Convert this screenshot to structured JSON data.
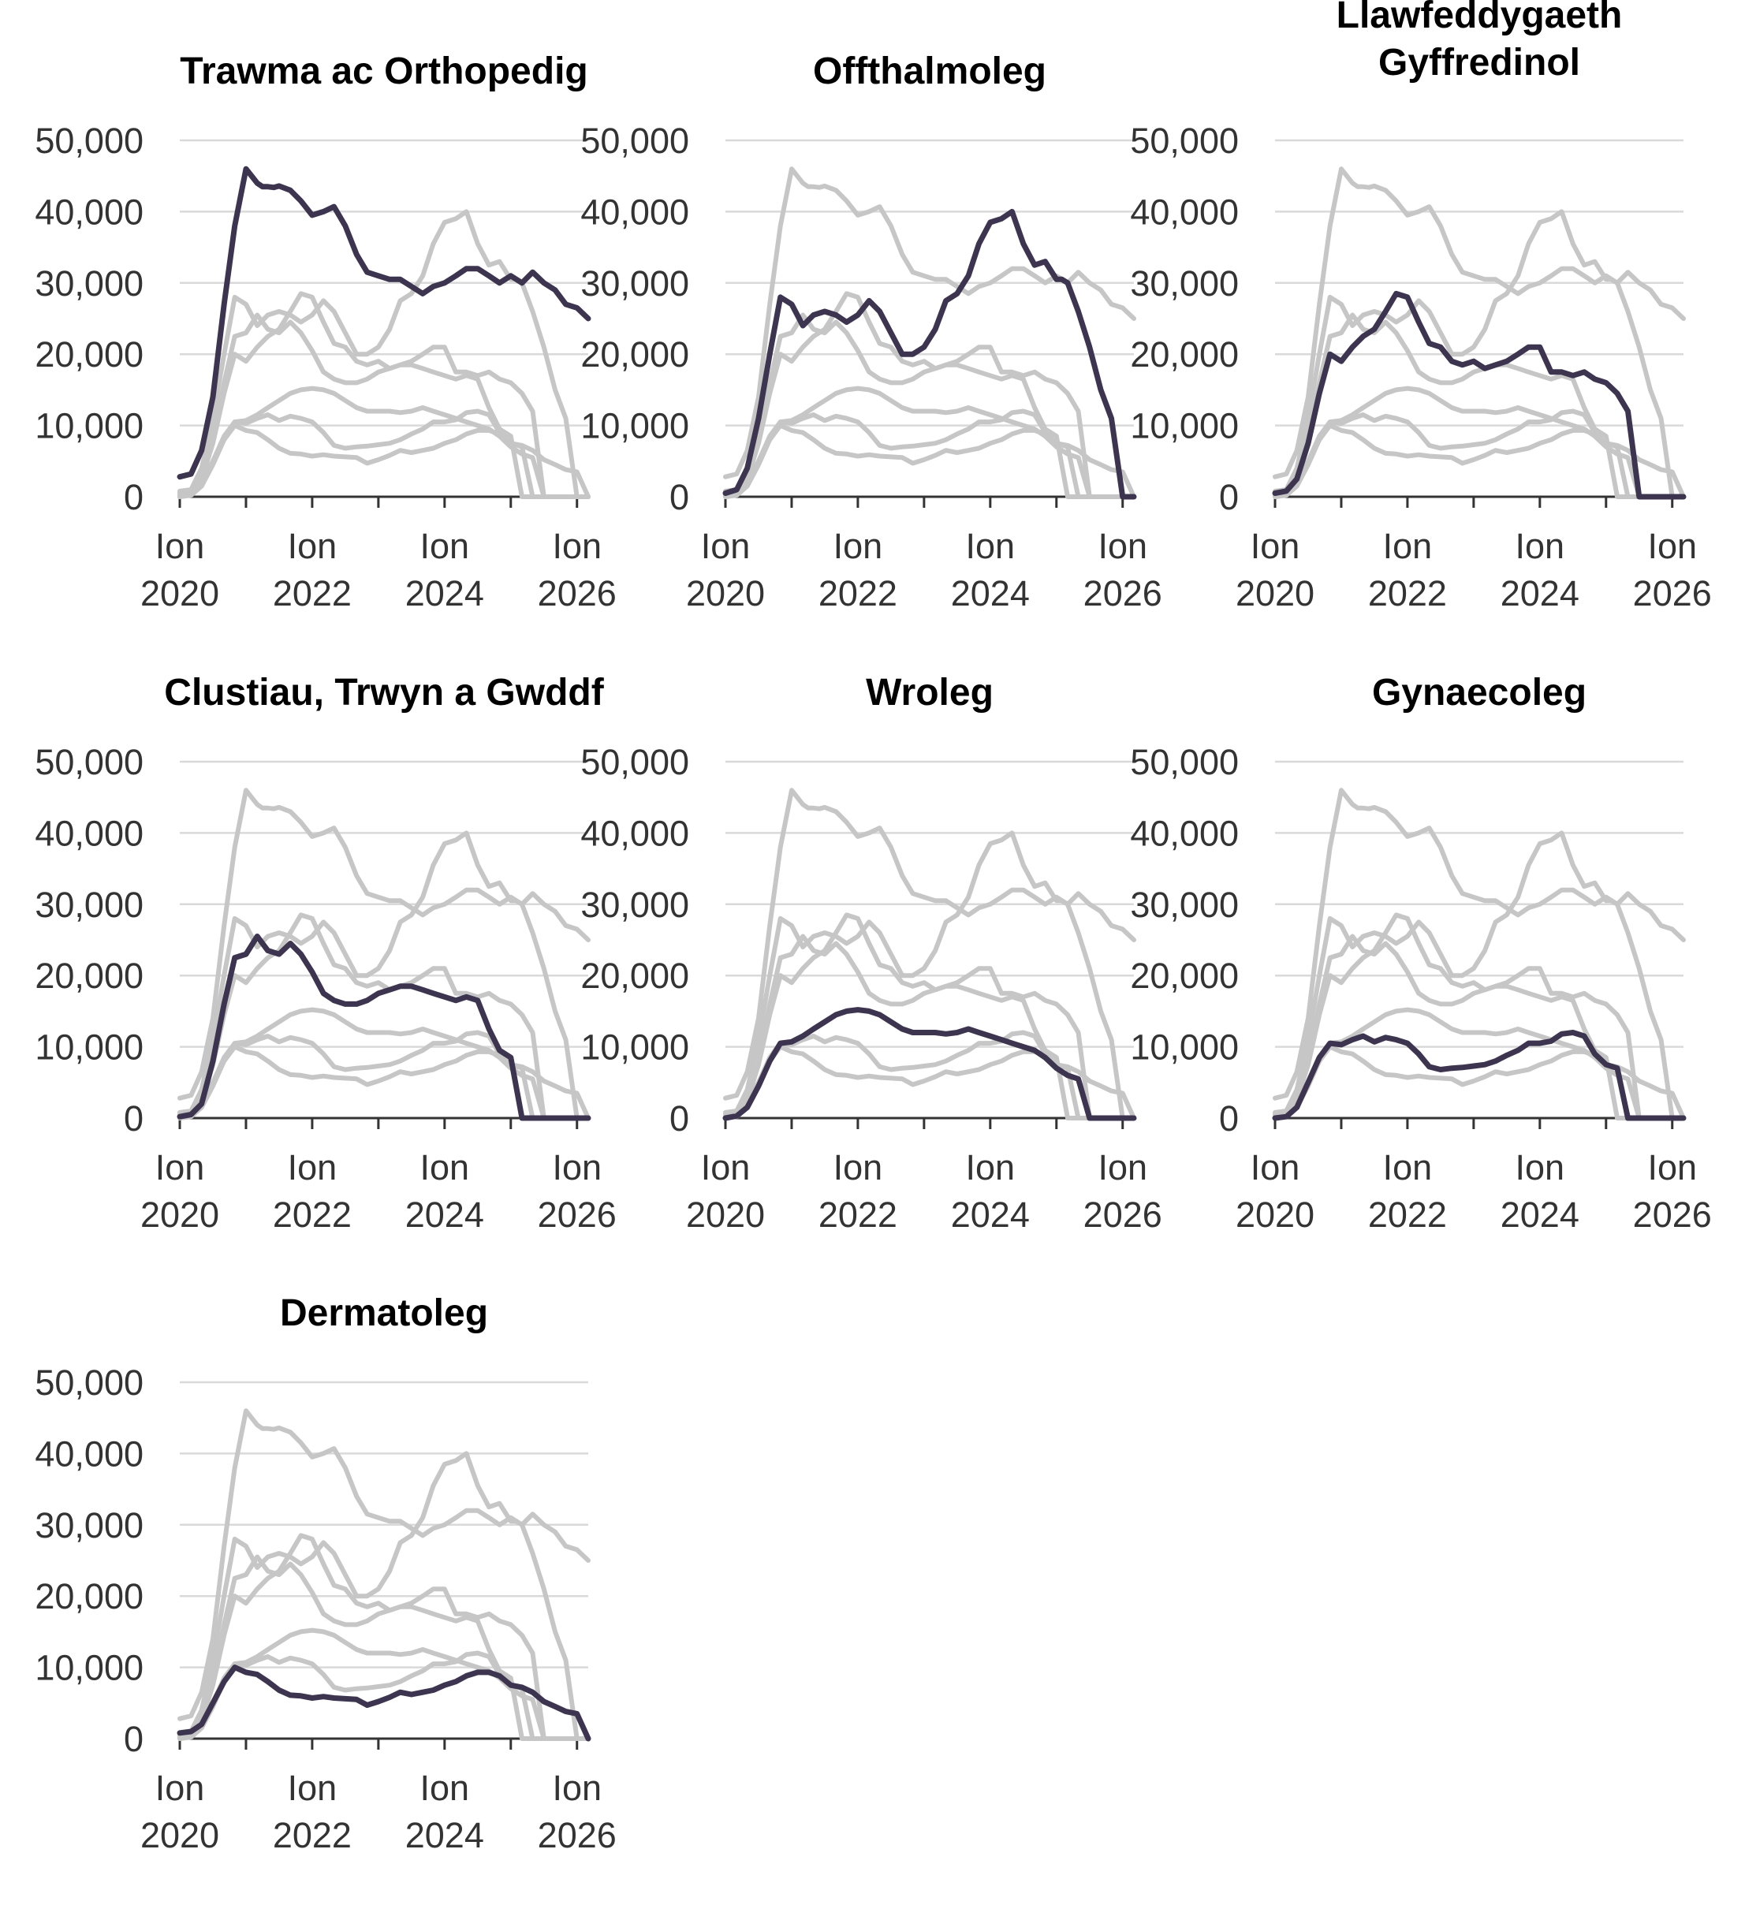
{
  "chart_data": {
    "type": "line",
    "layout": "small-multiples",
    "x_ticks": [
      {
        "x": 2020.0,
        "line1": "Ion",
        "line2": "2020"
      },
      {
        "x": 2022.0,
        "line1": "Ion",
        "line2": "2022"
      },
      {
        "x": 2024.0,
        "line1": "Ion",
        "line2": "2024"
      },
      {
        "x": 2026.0,
        "line1": "Ion",
        "line2": "2026"
      }
    ],
    "x_minor_ticks": [
      2021.0,
      2023.0,
      2025.0
    ],
    "xlim": [
      2020.0,
      2026.17
    ],
    "y_ticks": [
      {
        "value": 0,
        "label": "0"
      },
      {
        "value": 10000,
        "label": "10,000"
      },
      {
        "value": 20000,
        "label": "20,000"
      },
      {
        "value": 30000,
        "label": "30,000"
      },
      {
        "value": 40000,
        "label": "40,000"
      },
      {
        "value": 50000,
        "label": "50,000"
      }
    ],
    "ylim": [
      0,
      50000
    ],
    "grid": true,
    "colors": {
      "highlight": "#3d3550",
      "background": "#c6c6c6",
      "grid": "#d9d9d9"
    },
    "panels": [
      {
        "title_lines": [
          "Trawma ac Orthopedig"
        ],
        "highlight": 0
      },
      {
        "title_lines": [
          "Offthalmoleg"
        ],
        "highlight": 1
      },
      {
        "title_lines": [
          "Llawfeddygaeth",
          "Gyffredinol"
        ],
        "highlight": 2
      },
      {
        "title_lines": [
          "Clustiau, Trwyn a Gwddf"
        ],
        "highlight": 3
      },
      {
        "title_lines": [
          "Wroleg"
        ],
        "highlight": 4
      },
      {
        "title_lines": [
          "Gynaecoleg"
        ],
        "highlight": 5
      },
      {
        "title_lines": [
          "Dermatoleg"
        ],
        "highlight": 6
      }
    ],
    "series": [
      {
        "x": [
          2020.0,
          2020.17,
          2020.33,
          2020.5,
          2020.67,
          2020.83,
          2021.0,
          2021.17,
          2021.25,
          2021.33,
          2021.42,
          2021.5,
          2021.67,
          2021.83,
          2022.0,
          2022.17,
          2022.33,
          2022.5,
          2022.67,
          2022.83,
          2023.0,
          2023.17,
          2023.33,
          2023.5,
          2023.67,
          2023.83,
          2024.0,
          2024.17,
          2024.33,
          2024.5,
          2024.67,
          2024.83,
          2025.0,
          2025.17,
          2025.33,
          2025.5,
          2025.67,
          2025.83,
          2026.0,
          2026.17
        ],
        "values": [
          2800,
          3200,
          6500,
          14000,
          27000,
          38000,
          46000,
          44000,
          43500,
          43500,
          43400,
          43600,
          43000,
          41500,
          39500,
          40000,
          40700,
          38000,
          34000,
          31500,
          31000,
          30500,
          30500,
          29500,
          28500,
          29500,
          30000,
          31000,
          32000,
          32000,
          31000,
          30000,
          31000,
          30000,
          31500,
          30000,
          29000,
          27000,
          26500,
          25000
        ]
      },
      {
        "x": [
          2020.0,
          2020.17,
          2020.33,
          2020.5,
          2020.67,
          2020.83,
          2021.0,
          2021.17,
          2021.33,
          2021.5,
          2021.67,
          2021.83,
          2022.0,
          2022.17,
          2022.33,
          2022.5,
          2022.67,
          2022.83,
          2023.0,
          2023.17,
          2023.33,
          2023.5,
          2023.67,
          2023.83,
          2024.0,
          2024.17,
          2024.33,
          2024.5,
          2024.67,
          2024.83,
          2025.0,
          2025.08,
          2025.17,
          2025.33,
          2025.5,
          2025.67,
          2025.83,
          2026.0,
          2026.17
        ],
        "values": [
          500,
          1000,
          4000,
          11000,
          20000,
          28000,
          27000,
          24000,
          25500,
          26000,
          25500,
          24500,
          25500,
          27500,
          26000,
          23000,
          20000,
          20000,
          21000,
          23500,
          27500,
          28500,
          31000,
          35500,
          38500,
          39000,
          40000,
          35500,
          32500,
          33000,
          30500,
          30500,
          30000,
          26000,
          21000,
          15000,
          11000,
          0,
          0
        ]
      },
      {
        "x": [
          2020.0,
          2020.17,
          2020.33,
          2020.5,
          2020.67,
          2020.83,
          2021.0,
          2021.17,
          2021.33,
          2021.5,
          2021.67,
          2021.83,
          2022.0,
          2022.17,
          2022.33,
          2022.5,
          2022.67,
          2022.83,
          2023.0,
          2023.17,
          2023.33,
          2023.5,
          2023.67,
          2023.83,
          2024.0,
          2024.17,
          2024.33,
          2024.5,
          2024.67,
          2024.83,
          2025.0,
          2025.17,
          2025.33,
          2025.5,
          2025.67,
          2025.83,
          2026.0,
          2026.17
        ],
        "values": [
          500,
          800,
          2500,
          7500,
          14500,
          20000,
          19000,
          21000,
          22500,
          23500,
          26000,
          28500,
          28000,
          24500,
          21500,
          21000,
          19000,
          18500,
          19000,
          18000,
          18500,
          19000,
          20000,
          21000,
          21000,
          17500,
          17500,
          17000,
          17500,
          16500,
          16000,
          14500,
          12000,
          0,
          0,
          0,
          0,
          0
        ]
      },
      {
        "x": [
          2020.0,
          2020.17,
          2020.33,
          2020.5,
          2020.67,
          2020.83,
          2021.0,
          2021.17,
          2021.33,
          2021.5,
          2021.67,
          2021.83,
          2022.0,
          2022.17,
          2022.33,
          2022.5,
          2022.67,
          2022.83,
          2023.0,
          2023.17,
          2023.33,
          2023.5,
          2023.67,
          2023.83,
          2024.0,
          2024.17,
          2024.33,
          2024.5,
          2024.67,
          2024.83,
          2025.0,
          2025.17,
          2025.33,
          2025.5,
          2025.67,
          2025.83,
          2026.0,
          2026.17
        ],
        "values": [
          200,
          500,
          2000,
          8000,
          16000,
          22500,
          23000,
          25500,
          23500,
          23000,
          24500,
          23000,
          20500,
          17500,
          16500,
          16000,
          16000,
          16500,
          17500,
          18000,
          18500,
          18500,
          18000,
          17500,
          17000,
          16500,
          17000,
          16500,
          12500,
          9500,
          8500,
          0,
          0,
          0,
          0,
          0,
          0,
          0
        ]
      },
      {
        "x": [
          2020.0,
          2020.17,
          2020.33,
          2020.5,
          2020.67,
          2020.83,
          2021.0,
          2021.17,
          2021.33,
          2021.5,
          2021.67,
          2021.83,
          2022.0,
          2022.17,
          2022.33,
          2022.5,
          2022.67,
          2022.83,
          2023.0,
          2023.17,
          2023.33,
          2023.5,
          2023.67,
          2023.83,
          2024.0,
          2024.17,
          2024.33,
          2024.5,
          2024.67,
          2024.83,
          2025.0,
          2025.17,
          2025.33,
          2025.5,
          2025.67,
          2025.83,
          2026.0,
          2026.17
        ],
        "values": [
          0,
          300,
          1500,
          4500,
          8000,
          10500,
          10700,
          11500,
          12500,
          13500,
          14500,
          15000,
          15200,
          15000,
          14500,
          13500,
          12500,
          12000,
          12000,
          12000,
          11800,
          12000,
          12500,
          12000,
          11500,
          11000,
          10500,
          10000,
          9500,
          8500,
          7000,
          6000,
          5500,
          0,
          0,
          0,
          0,
          0
        ]
      },
      {
        "x": [
          2020.0,
          2020.17,
          2020.33,
          2020.5,
          2020.67,
          2020.83,
          2021.0,
          2021.17,
          2021.33,
          2021.5,
          2021.67,
          2021.83,
          2022.0,
          2022.17,
          2022.33,
          2022.5,
          2022.67,
          2022.83,
          2023.0,
          2023.17,
          2023.33,
          2023.5,
          2023.67,
          2023.83,
          2024.0,
          2024.17,
          2024.33,
          2024.5,
          2024.67,
          2024.83,
          2025.0,
          2025.17,
          2025.33,
          2025.5,
          2025.67,
          2025.83,
          2026.0,
          2026.17
        ],
        "values": [
          0,
          200,
          1500,
          5000,
          8500,
          10500,
          10300,
          11000,
          11500,
          10700,
          11300,
          11000,
          10500,
          9000,
          7200,
          6800,
          7000,
          7100,
          7300,
          7500,
          8000,
          8800,
          9500,
          10500,
          10500,
          10800,
          11800,
          12000,
          11500,
          9000,
          7500,
          7000,
          0,
          0,
          0,
          0,
          0,
          0
        ]
      },
      {
        "x": [
          2020.0,
          2020.17,
          2020.33,
          2020.5,
          2020.67,
          2020.83,
          2021.0,
          2021.17,
          2021.33,
          2021.5,
          2021.67,
          2021.83,
          2022.0,
          2022.17,
          2022.33,
          2022.5,
          2022.67,
          2022.83,
          2023.0,
          2023.17,
          2023.33,
          2023.5,
          2023.67,
          2023.83,
          2024.0,
          2024.17,
          2024.33,
          2024.5,
          2024.67,
          2024.83,
          2025.0,
          2025.17,
          2025.33,
          2025.5,
          2025.67,
          2025.83,
          2026.0,
          2026.17
        ],
        "values": [
          800,
          1000,
          2000,
          5000,
          8000,
          10000,
          9300,
          9000,
          8000,
          6800,
          6100,
          6000,
          5700,
          5900,
          5700,
          5600,
          5500,
          4700,
          5200,
          5800,
          6500,
          6200,
          6500,
          6800,
          7500,
          8000,
          8800,
          9300,
          9300,
          8800,
          7500,
          7200,
          6500,
          5200,
          4500,
          3800,
          3500,
          0
        ]
      }
    ]
  }
}
